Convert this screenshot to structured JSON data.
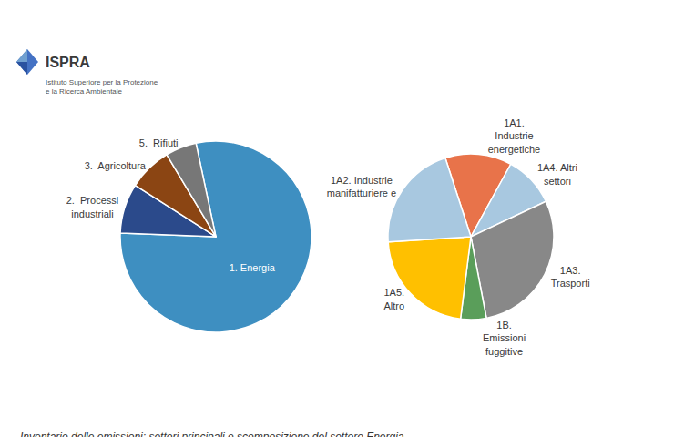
{
  "chart_data": [
    {
      "type": "pie",
      "categories": [
        "1. Energia",
        "2.  Processi\nindustriali",
        "3.  Agricoltura",
        "5.  Rifiuti"
      ],
      "values": [
        75,
        8,
        7,
        5
      ],
      "colors": [
        "#3E8FC1",
        "#2B4A8B",
        "#8B4513",
        "#777777"
      ],
      "caption": "Inventario delle emissioni: settori principali e scomposizione del settore Energia",
      "annotations": [
        "ISPRA",
        "Istituto Superiore per la Protezione\ne la Ricerca Ambientale"
      ]
    },
    {
      "type": "pie",
      "categories": [
        "1A1.\nIndustrie\nenergetiche",
        "1A4. Altri\nsettori",
        "1A3.\nTrasporti",
        "1B.\nEmissioni\nfuggitive",
        "1A5.\nAltro",
        "1A2. Industrie\nmanifatturiere e"
      ],
      "values": [
        13,
        10,
        29,
        5,
        22,
        21
      ],
      "colors": [
        "#E8734A",
        "#A8C8E0",
        "#888888",
        "#5A9E5A",
        "#FFC000",
        "#A8C8E0"
      ]
    }
  ]
}
